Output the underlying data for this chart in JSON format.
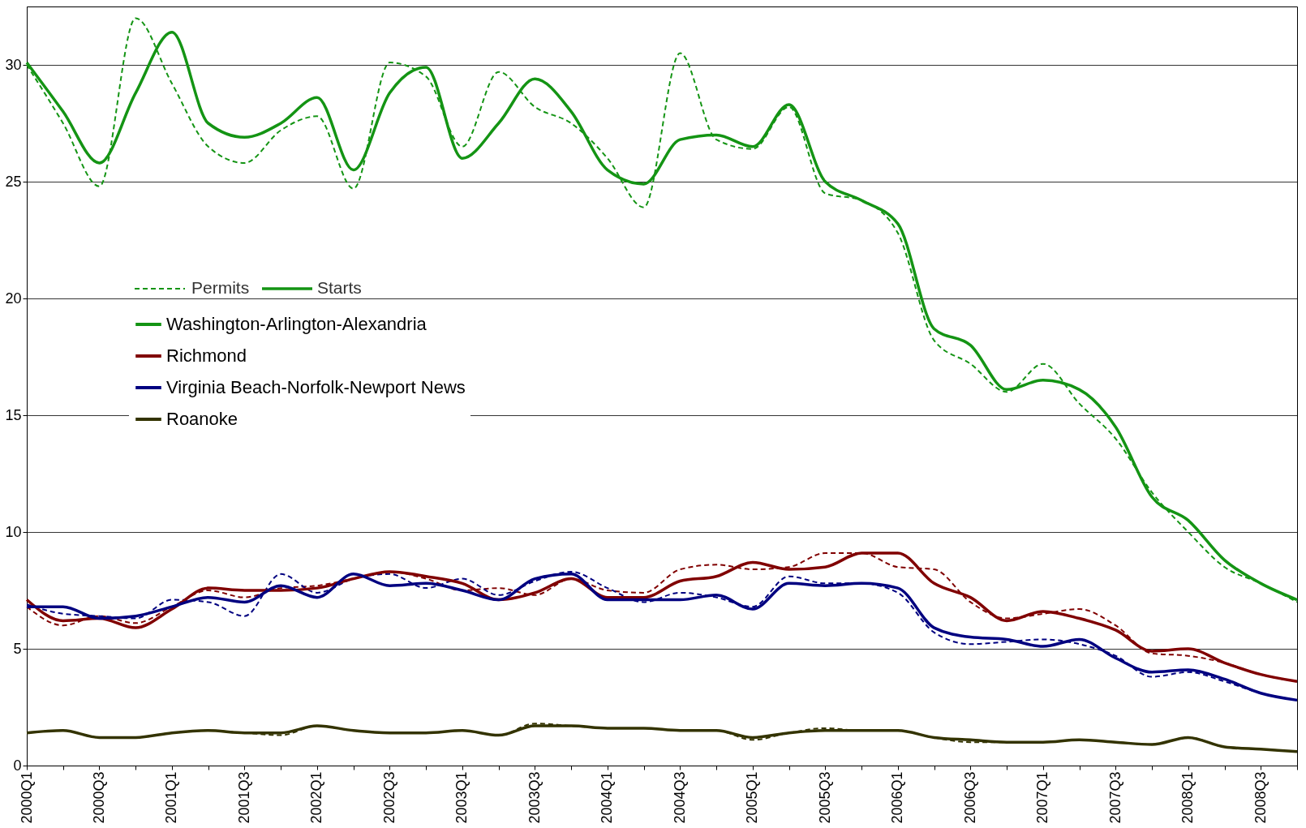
{
  "chart_data": {
    "type": "line",
    "categories": [
      "2000Q1",
      null,
      "2000Q3",
      null,
      "2001Q1",
      null,
      "2001Q3",
      null,
      "2002Q1",
      null,
      "2002Q3",
      null,
      "2003Q1",
      null,
      "2003Q3",
      null,
      "2004Q1",
      null,
      "2004Q3",
      null,
      "2005Q1",
      null,
      "2005Q3",
      null,
      "2006Q1",
      null,
      "2006Q3",
      null,
      "2007Q1",
      null,
      "2007Q3",
      null,
      "2008Q1",
      null,
      "2008Q3",
      null
    ],
    "ylim": [
      0,
      32.5
    ],
    "yticks": [
      0,
      5,
      10,
      15,
      20,
      25,
      30
    ],
    "grid": "y",
    "legend": "left",
    "annotations": [
      "Permits",
      "Starts"
    ],
    "series": [
      {
        "color": "#149414",
        "line_style": "dashed",
        "values": [
          30.0,
          27.5,
          24.8,
          32.0,
          29.2,
          26.5,
          25.8,
          27.2,
          27.8,
          24.7,
          30.1,
          29.5,
          26.5,
          29.7,
          28.2,
          27.5,
          26.0,
          23.9,
          30.5,
          26.8,
          26.4,
          28.2,
          24.5,
          24.2,
          22.8,
          18.2,
          17.2,
          16.0,
          17.2,
          15.5,
          14.0,
          11.7,
          10.0,
          8.5,
          7.8,
          7.0
        ]
      },
      {
        "color": "#800000",
        "line_style": "dashed",
        "values": [
          6.8,
          6.0,
          6.4,
          6.1,
          6.8,
          7.5,
          7.2,
          7.6,
          7.7,
          8.0,
          8.3,
          8.0,
          7.5,
          7.6,
          7.3,
          8.0,
          7.5,
          7.4,
          8.4,
          8.6,
          8.4,
          8.5,
          9.1,
          9.1,
          8.5,
          8.4,
          7.0,
          6.3,
          6.5,
          6.7,
          6.0,
          4.8,
          4.7,
          4.4,
          3.9,
          3.6
        ]
      },
      {
        "color": "#000080",
        "line_style": "dashed",
        "values": [
          6.9,
          6.5,
          6.4,
          6.3,
          7.1,
          7.0,
          6.4,
          8.2,
          7.4,
          8.0,
          8.2,
          7.6,
          8.0,
          7.3,
          7.9,
          8.3,
          7.6,
          7.0,
          7.4,
          7.2,
          6.8,
          8.1,
          7.8,
          7.8,
          7.4,
          5.7,
          5.2,
          5.3,
          5.4,
          5.2,
          4.7,
          3.8,
          4.0,
          3.6,
          3.1,
          2.8
        ]
      },
      {
        "color": "#333300",
        "line_style": "dashed",
        "values": [
          1.4,
          1.5,
          1.2,
          1.2,
          1.4,
          1.5,
          1.4,
          1.3,
          1.7,
          1.5,
          1.4,
          1.4,
          1.5,
          1.3,
          1.8,
          1.7,
          1.6,
          1.6,
          1.5,
          1.5,
          1.1,
          1.4,
          1.6,
          1.5,
          1.5,
          1.2,
          1.0,
          1.0,
          1.0,
          1.1,
          1.0,
          0.9,
          1.2,
          0.8,
          0.7,
          0.6
        ]
      },
      {
        "name": "Washington-Arlington-Alexandria",
        "color": "#149414",
        "line_style": "solid",
        "values": [
          30.1,
          28.0,
          25.8,
          28.8,
          31.4,
          27.5,
          26.9,
          27.5,
          28.6,
          25.5,
          28.8,
          29.9,
          26.0,
          27.5,
          29.4,
          28.0,
          25.5,
          24.9,
          26.8,
          27.0,
          26.5,
          28.3,
          25.0,
          24.2,
          23.2,
          18.7,
          18.0,
          16.1,
          16.5,
          16.1,
          14.5,
          11.5,
          10.5,
          8.8,
          7.8,
          7.1
        ]
      },
      {
        "name": "Richmond",
        "color": "#800000",
        "line_style": "solid",
        "values": [
          7.1,
          6.2,
          6.3,
          5.9,
          6.7,
          7.6,
          7.5,
          7.5,
          7.6,
          8.0,
          8.3,
          8.1,
          7.8,
          7.1,
          7.4,
          8.0,
          7.2,
          7.2,
          7.9,
          8.1,
          8.7,
          8.4,
          8.5,
          9.1,
          9.1,
          7.8,
          7.2,
          6.2,
          6.6,
          6.3,
          5.8,
          4.9,
          5.0,
          4.4,
          3.9,
          3.6
        ]
      },
      {
        "name": "Virginia Beach-Norfolk-Newport News",
        "color": "#000080",
        "line_style": "solid",
        "values": [
          6.8,
          6.8,
          6.3,
          6.4,
          6.8,
          7.2,
          7.0,
          7.7,
          7.2,
          8.2,
          7.7,
          7.8,
          7.5,
          7.1,
          8.0,
          8.2,
          7.1,
          7.1,
          7.1,
          7.3,
          6.7,
          7.8,
          7.7,
          7.8,
          7.6,
          5.9,
          5.5,
          5.4,
          5.1,
          5.4,
          4.6,
          4.0,
          4.1,
          3.7,
          3.1,
          2.8
        ]
      },
      {
        "name": "Roanoke",
        "color": "#333300",
        "line_style": "solid",
        "values": [
          1.4,
          1.5,
          1.2,
          1.2,
          1.4,
          1.5,
          1.4,
          1.4,
          1.7,
          1.5,
          1.4,
          1.4,
          1.5,
          1.3,
          1.7,
          1.7,
          1.6,
          1.6,
          1.5,
          1.5,
          1.2,
          1.4,
          1.5,
          1.5,
          1.5,
          1.2,
          1.1,
          1.0,
          1.0,
          1.1,
          1.0,
          0.9,
          1.2,
          0.8,
          0.7,
          0.6
        ]
      }
    ]
  }
}
